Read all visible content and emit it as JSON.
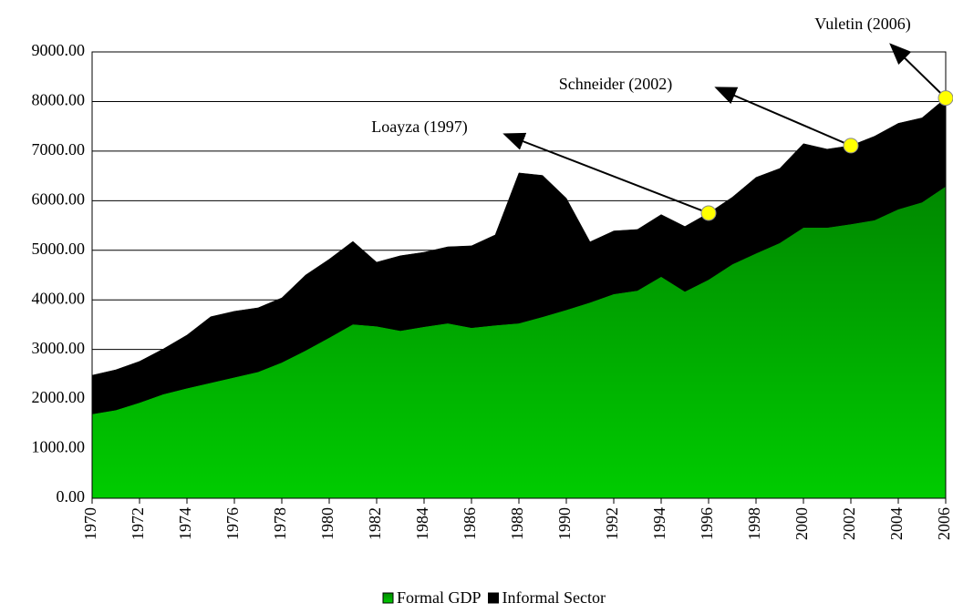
{
  "chart_data": {
    "type": "stacked_area",
    "x": [
      1970,
      1971,
      1972,
      1973,
      1974,
      1975,
      1976,
      1977,
      1978,
      1979,
      1980,
      1981,
      1982,
      1983,
      1984,
      1985,
      1986,
      1987,
      1988,
      1989,
      1990,
      1991,
      1992,
      1993,
      1994,
      1995,
      1996,
      1997,
      1998,
      1999,
      2000,
      2001,
      2002,
      2003,
      2004,
      2005,
      2006
    ],
    "series": [
      {
        "name": "Formal GDP",
        "color": "#00cc00",
        "values": [
          1700,
          1780,
          1930,
          2100,
          2220,
          2330,
          2440,
          2550,
          2740,
          2980,
          3240,
          3510,
          3470,
          3380,
          3460,
          3530,
          3440,
          3490,
          3530,
          3660,
          3800,
          3950,
          4120,
          4190,
          4470,
          4170,
          4410,
          4720,
          4940,
          5150,
          5460,
          5460,
          5530,
          5610,
          5830,
          5970,
          6290
        ]
      },
      {
        "name": "Informal Sector",
        "color": "#000000",
        "values": [
          780,
          810,
          830,
          910,
          1070,
          1330,
          1330,
          1290,
          1300,
          1520,
          1580,
          1670,
          1290,
          1510,
          1500,
          1540,
          1650,
          1820,
          3030,
          2850,
          2250,
          1220,
          1270,
          1230,
          1250,
          1310,
          1340,
          1350,
          1530,
          1500,
          1690,
          1580,
          1580,
          1690,
          1730,
          1700,
          1780
        ]
      }
    ],
    "xlim": [
      1970,
      2006
    ],
    "xticks": [
      1970,
      1972,
      1974,
      1976,
      1978,
      1980,
      1982,
      1984,
      1986,
      1988,
      1990,
      1992,
      1994,
      1996,
      1998,
      2000,
      2002,
      2004,
      2006
    ],
    "ylim": [
      0,
      9000
    ],
    "yticks": [
      {
        "value": 0,
        "label": "0.00"
      },
      {
        "value": 1000,
        "label": "1000.00"
      },
      {
        "value": 2000,
        "label": "2000.00"
      },
      {
        "value": 3000,
        "label": "3000.00"
      },
      {
        "value": 4000,
        "label": "4000.00"
      },
      {
        "value": 5000,
        "label": "5000.00"
      },
      {
        "value": 6000,
        "label": "6000.00"
      },
      {
        "value": 7000,
        "label": "7000.00"
      },
      {
        "value": 8000,
        "label": "8000.00"
      },
      {
        "value": 9000,
        "label": "9000.00"
      }
    ],
    "grid": true,
    "legend": "bottom",
    "annotations": [
      {
        "text": "Loayza (1997)",
        "x": 1996
      },
      {
        "text": "Schneider (2002)",
        "x": 2002
      },
      {
        "text": "Vuletin (2006)",
        "x": 2006
      }
    ]
  }
}
